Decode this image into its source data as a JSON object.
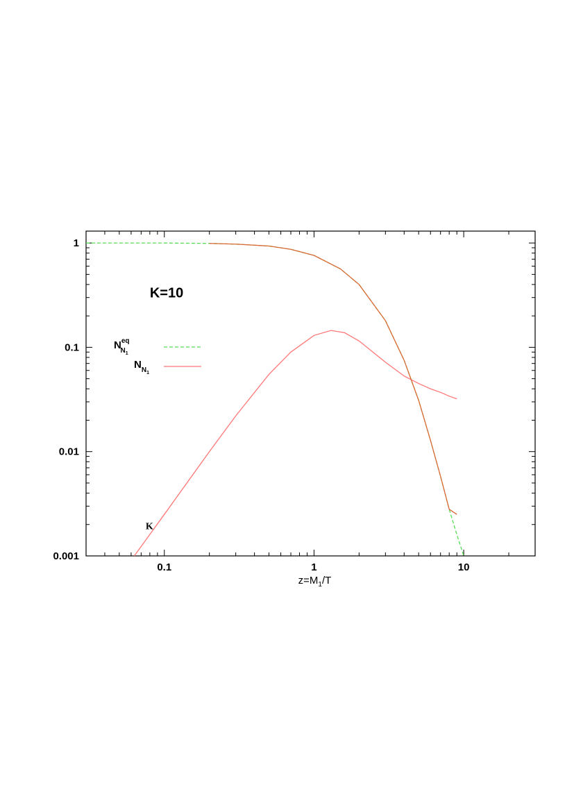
{
  "chart_data": {
    "type": "line",
    "title": "",
    "xlabel": {
      "pre": "z=M",
      "sub": "1",
      "post": "/T"
    },
    "ylabel": "",
    "xscale": "log",
    "yscale": "log",
    "xlim": [
      0.03,
      30
    ],
    "ylim": [
      0.001,
      1.3
    ],
    "grid": false,
    "legend_position": "middle-left",
    "x_tick_labels": [
      {
        "value": 0.1,
        "label": "0.1"
      },
      {
        "value": 1,
        "label": "1"
      },
      {
        "value": 10,
        "label": "10"
      }
    ],
    "y_tick_labels": [
      {
        "value": 1,
        "label": "1"
      },
      {
        "value": 0.1,
        "label": "0.1"
      },
      {
        "value": 0.01,
        "label": "0.01"
      },
      {
        "value": 0.001,
        "label": "0.001"
      }
    ],
    "annotations": [
      {
        "text": "K=10",
        "x": 0.08,
        "y": 0.3,
        "style": "large-bold"
      },
      {
        "text": "K",
        "x": 0.075,
        "y": 0.0018,
        "style": "serif-small"
      }
    ],
    "series": [
      {
        "key": "eq",
        "legend": {
          "base": "N",
          "sub": "N",
          "subsub": "1",
          "sup": "eq"
        },
        "color": "#55dd55",
        "dash": "5,3",
        "x": [
          0.03,
          0.05,
          0.1,
          0.2,
          0.3,
          0.5,
          0.7,
          1.0,
          1.5,
          2.0,
          3.0,
          4.0,
          5.0,
          6.0,
          7.0,
          8.0,
          9.0,
          10.0
        ],
        "y": [
          1.0,
          1.0,
          1.0,
          0.99,
          0.975,
          0.935,
          0.87,
          0.76,
          0.565,
          0.4,
          0.18,
          0.075,
          0.031,
          0.0128,
          0.0058,
          0.0028,
          0.0016,
          0.001
        ]
      },
      {
        "key": "n",
        "legend": {
          "base": "N",
          "sub": "N",
          "subsub": "1",
          "sup": ""
        },
        "color": "#ff7777",
        "dash": "",
        "x": [
          0.063,
          0.1,
          0.2,
          0.3,
          0.5,
          0.7,
          1.0,
          1.3,
          1.6,
          2.0,
          3.0,
          4.0,
          5.0,
          6.0,
          7.0,
          8.0,
          9.0
        ],
        "y": [
          0.001,
          0.0025,
          0.01,
          0.022,
          0.055,
          0.09,
          0.13,
          0.145,
          0.138,
          0.115,
          0.072,
          0.053,
          0.045,
          0.04,
          0.037,
          0.034,
          0.032
        ]
      },
      {
        "key": "eq-overlay",
        "legend": null,
        "color": "#dd6633",
        "dash": "",
        "x": [
          0.2,
          0.3,
          0.5,
          0.7,
          1.0,
          1.5,
          2.0,
          3.0,
          4.0,
          5.0,
          6.0,
          7.0,
          8.0,
          9.0
        ],
        "y": [
          0.99,
          0.975,
          0.935,
          0.87,
          0.76,
          0.565,
          0.4,
          0.18,
          0.075,
          0.031,
          0.0128,
          0.0058,
          0.0028,
          0.0025
        ]
      }
    ]
  }
}
